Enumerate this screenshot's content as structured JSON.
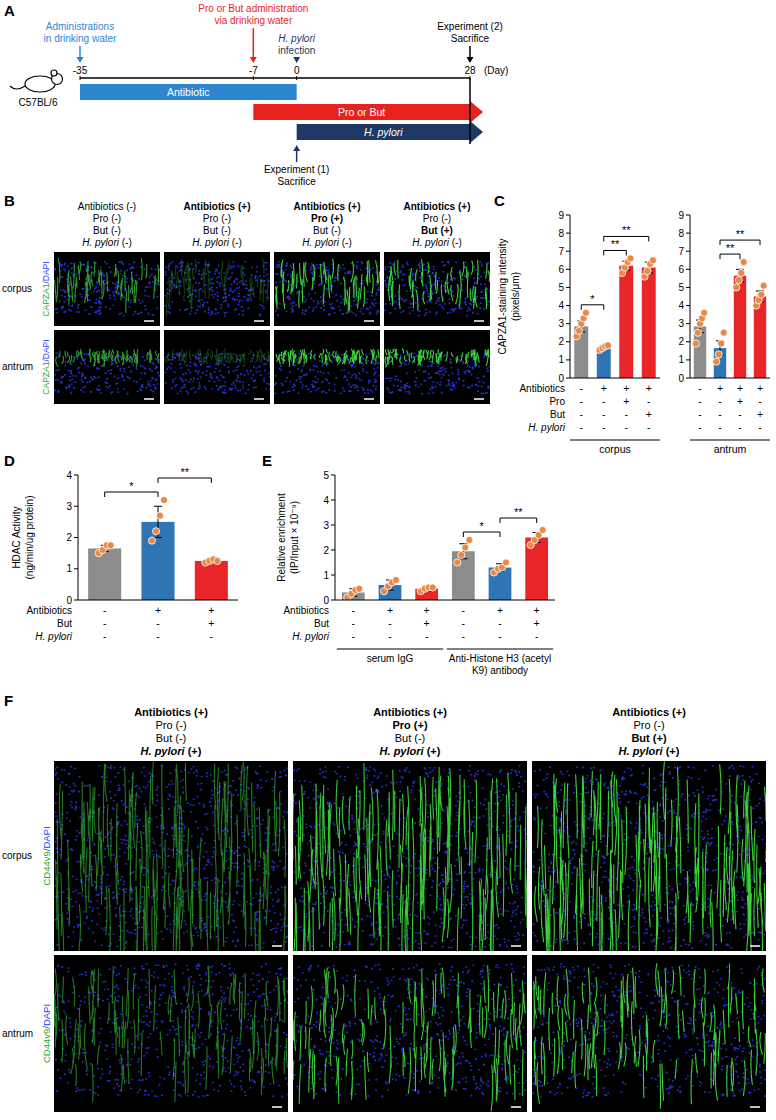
{
  "panel_a": {
    "letter": "A",
    "strain": "C57BL/6",
    "unit": "(Day)",
    "xlim": [
      -35,
      28
    ],
    "ticks": [
      -35,
      -7,
      0,
      28
    ],
    "events": [
      {
        "day": -35,
        "lines": [
          "Administrations",
          "in drinking water"
        ],
        "color": "#2e86d1"
      },
      {
        "day": -7,
        "lines": [
          "Pro or But administration",
          "via drinking water"
        ],
        "color": "#e8231f"
      },
      {
        "day": 0,
        "lines": [
          "H. pylori",
          "infection"
        ],
        "color": "#1f3864"
      },
      {
        "day": 28,
        "lines": [
          "Experiment (2)",
          "Sacrifice"
        ],
        "color": "#000000"
      }
    ],
    "sacrifice": {
      "day": 0,
      "lines": [
        "Experiment (1)",
        "Sacrifice"
      ]
    },
    "bars": [
      {
        "label": "Antibiotic",
        "from": -35,
        "to": 0,
        "color": "#2e86d1"
      },
      {
        "label": "Pro or But",
        "from": -7,
        "to": 28,
        "color": "#e8231f"
      },
      {
        "label": "H. pylori",
        "from": 0,
        "to": 28,
        "color": "#1f3864"
      }
    ]
  },
  "panel_b": {
    "letter": "B",
    "columns": [
      [
        "Antibiotics (-)",
        "Pro (-)",
        "But (-)",
        "H. pylori (-)"
      ],
      [
        "Antibiotics (+)",
        "Pro (-)",
        "But (-)",
        "H. pylori (-)"
      ],
      [
        "Antibiotics (+)",
        "Pro (+)",
        "But (-)",
        "H. pylori (-)"
      ],
      [
        "Antibiotics (+)",
        "Pro (-)",
        "But (+)",
        "H. pylori (-)"
      ]
    ],
    "rows": [
      "corpus",
      "antrum"
    ],
    "stain": [
      "CAPZA1",
      "/",
      "DAPI"
    ]
  },
  "chart_data": [
    {
      "type": "bar",
      "letter": "C",
      "y_label": [
        "CAPZA1-staining intensity",
        "(pixels/μm)"
      ],
      "categories": [
        null,
        null,
        null,
        null
      ],
      "values": [
        2.85,
        1.7,
        6.2,
        6.1
      ],
      "errors": [
        0.3,
        0.1,
        0.25,
        0.3
      ],
      "points": [
        [
          2.3,
          2.6,
          3.0,
          3.3,
          3.6
        ],
        [
          1.55,
          1.65,
          1.75,
          1.8
        ],
        [
          5.8,
          6.1,
          6.4,
          6.6
        ],
        [
          5.6,
          5.9,
          6.3,
          6.5
        ]
      ],
      "colors": [
        "#8c8c8c",
        "#2e75b6",
        "#e8262a",
        "#e8262a"
      ],
      "ylim": [
        0,
        9
      ],
      "yticks": [
        0,
        1,
        2,
        3,
        4,
        5,
        6,
        7,
        8,
        9
      ],
      "conditions": [
        {
          "name": "Antibiotics",
          "values": [
            "-",
            "+",
            "+",
            "+"
          ]
        },
        {
          "name": "Pro",
          "values": [
            "-",
            "-",
            "+",
            "-"
          ]
        },
        {
          "name": "But",
          "values": [
            "-",
            "-",
            "-",
            "+"
          ]
        },
        {
          "name": "H. pylori",
          "values": [
            "-",
            "-",
            "-",
            "-"
          ]
        }
      ],
      "group_label": "corpus",
      "significance": [
        {
          "from": 0,
          "to": 1,
          "label": "*"
        },
        {
          "from": 1,
          "to": 2,
          "label": "**"
        },
        {
          "from": 1,
          "to": 3,
          "label": "**"
        }
      ]
    },
    {
      "type": "bar",
      "categories": [
        null,
        null,
        null,
        null
      ],
      "values": [
        2.85,
        1.65,
        5.65,
        4.5
      ],
      "errors": [
        0.35,
        0.4,
        0.35,
        0.3
      ],
      "points": [
        [
          1.9,
          2.5,
          3.0,
          3.3,
          3.6
        ],
        [
          0.9,
          1.3,
          1.9,
          2.5
        ],
        [
          5.0,
          5.4,
          5.8,
          6.4
        ],
        [
          4.0,
          4.3,
          4.6,
          5.1
        ]
      ],
      "colors": [
        "#8c8c8c",
        "#2e75b6",
        "#e8262a",
        "#e8262a"
      ],
      "ylim": [
        0,
        9
      ],
      "yticks": [
        0,
        1,
        2,
        3,
        4,
        5,
        6,
        7,
        8,
        9
      ],
      "conditions": [
        {
          "values": [
            "-",
            "+",
            "+",
            "+"
          ]
        },
        {
          "values": [
            "-",
            "-",
            "+",
            "-"
          ]
        },
        {
          "values": [
            "-",
            "-",
            "-",
            "+"
          ]
        },
        {
          "values": [
            "-",
            "-",
            "-",
            "-"
          ]
        }
      ],
      "group_label": "antrum",
      "significance": [
        {
          "from": 1,
          "to": 2,
          "label": "**"
        },
        {
          "from": 1,
          "to": 3,
          "label": "**"
        }
      ]
    },
    {
      "type": "bar",
      "letter": "D",
      "y_label": [
        "HDAC Activity",
        "(ng/min/ug protein)"
      ],
      "categories": [
        null,
        null,
        null
      ],
      "values": [
        1.65,
        2.5,
        1.25
      ],
      "errors": [
        0.1,
        0.5,
        0.05
      ],
      "points": [
        [
          1.5,
          1.6,
          1.75,
          1.75
        ],
        [
          1.9,
          2.2,
          2.7,
          3.2
        ],
        [
          1.2,
          1.25,
          1.3,
          1.25
        ]
      ],
      "colors": [
        "#8c8c8c",
        "#2e75b6",
        "#e8262a"
      ],
      "ylim": [
        0,
        4
      ],
      "yticks": [
        0,
        1,
        2,
        3,
        4
      ],
      "conditions": [
        {
          "name": "Antibiotics",
          "values": [
            "-",
            "+",
            "+"
          ]
        },
        {
          "name": "But",
          "values": [
            "-",
            "-",
            "+"
          ]
        },
        {
          "name": "H. pylori",
          "values": [
            "-",
            "-",
            "-"
          ]
        }
      ],
      "significance": [
        {
          "from": 0,
          "to": 1,
          "label": "*"
        },
        {
          "from": 1,
          "to": 2,
          "label": "**"
        }
      ]
    },
    {
      "type": "bar",
      "letter": "E",
      "y_label": [
        "Relative enrichment",
        "(IP/Input × 10⁻⁹)"
      ],
      "categories": [
        null,
        null,
        null,
        null,
        null,
        null
      ],
      "values": [
        0.3,
        0.6,
        0.45,
        1.95,
        1.3,
        2.5
      ],
      "errors": [
        0.15,
        0.2,
        0.1,
        0.3,
        0.15,
        0.2
      ],
      "points": [
        [
          0.1,
          0.25,
          0.4,
          0.45
        ],
        [
          0.35,
          0.55,
          0.7,
          0.8
        ],
        [
          0.35,
          0.45,
          0.5,
          0.5
        ],
        [
          1.5,
          1.8,
          2.1,
          2.4
        ],
        [
          1.1,
          1.25,
          1.3,
          1.5
        ],
        [
          2.2,
          2.4,
          2.6,
          2.8
        ]
      ],
      "colors": [
        "#8c8c8c",
        "#2e75b6",
        "#e8262a",
        "#8c8c8c",
        "#2e75b6",
        "#e8262a"
      ],
      "ylim": [
        0,
        5
      ],
      "yticks": [
        0,
        1,
        2,
        3,
        4,
        5
      ],
      "conditions": [
        {
          "name": "Antibiotics",
          "values": [
            "-",
            "+",
            "+",
            "-",
            "+",
            "+"
          ]
        },
        {
          "name": "But",
          "values": [
            "-",
            "-",
            "+",
            "-",
            "-",
            "+"
          ]
        },
        {
          "name": "H. pylori",
          "values": [
            "-",
            "-",
            "-",
            "-",
            "-",
            "-"
          ]
        }
      ],
      "groups": [
        {
          "label": "serum IgG",
          "size": 3
        },
        {
          "label": "Anti-Histone H3 (acetyl K9) antibody",
          "size": 3
        }
      ],
      "significance": [
        {
          "from": 3,
          "to": 4,
          "label": "*"
        },
        {
          "from": 4,
          "to": 5,
          "label": "**"
        }
      ]
    }
  ],
  "panel_f": {
    "letter": "F",
    "columns": [
      [
        "Antibiotics (+)",
        "Pro (-)",
        "But (-)",
        "H. pylori (+)"
      ],
      [
        "Antibiotics (+)",
        "Pro (+)",
        "But (-)",
        "H. pylori (+)"
      ],
      [
        "Antibiotics (+)",
        "Pro (-)",
        "But (+)",
        "H. pylori (+)"
      ]
    ],
    "rows": [
      "corpus",
      "antrum"
    ],
    "stain": [
      "CD44v9",
      "/",
      "DAPI"
    ]
  }
}
